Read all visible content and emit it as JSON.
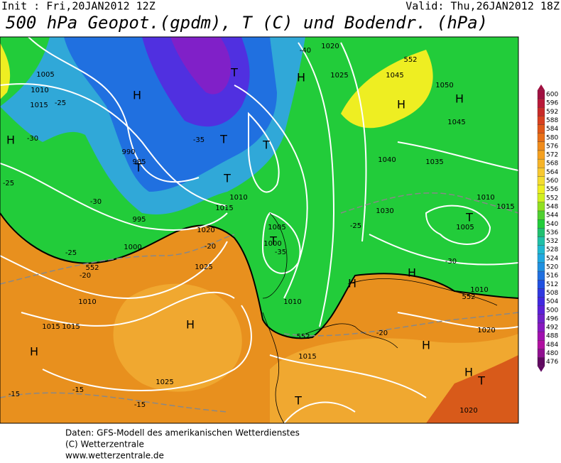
{
  "header": {
    "init": "Init : Fri,20JAN2012 12Z",
    "valid": "Valid: Thu,26JAN2012 18Z",
    "title": "500 hPa Geopot.(gpdm), T (C) und Bodendr. (hPa)"
  },
  "colorbar": {
    "labels": [
      "600",
      "596",
      "592",
      "588",
      "584",
      "580",
      "576",
      "572",
      "568",
      "564",
      "560",
      "556",
      "552",
      "548",
      "544",
      "540",
      "536",
      "532",
      "528",
      "524",
      "520",
      "516",
      "512",
      "508",
      "504",
      "500",
      "496",
      "492",
      "488",
      "484",
      "480",
      "476"
    ]
  },
  "map": {
    "labels": [
      "1005",
      "1010",
      "1015",
      "1020",
      "1025",
      "1000",
      "995",
      "990",
      "985",
      "1005",
      "1010",
      "1015",
      "1020",
      "1045",
      "1050",
      "1045",
      "1040",
      "1035",
      "1030",
      "1010",
      "1015",
      "1005",
      "1010",
      "1015",
      "1020",
      "1025",
      "1010",
      "1015",
      "1020",
      "1025",
      "1015",
      "1010",
      "1000",
      "-25",
      "-30",
      "-35",
      "-25",
      "-30",
      "-20",
      "-15",
      "-15",
      "-15",
      "-20",
      "-25",
      "-20",
      "-25",
      "-30",
      "-35",
      "-40",
      "552",
      "552",
      "552",
      "552"
    ],
    "pressure_centers": [
      "H",
      "H",
      "H",
      "H",
      "H",
      "H",
      "H",
      "H",
      "H",
      "H",
      "H",
      "T",
      "T",
      "T",
      "T",
      "T",
      "T",
      "T",
      "T",
      "T"
    ]
  },
  "footer": {
    "line1": "Daten: GFS-Modell des amerikanischen Wetterdienstes",
    "line2": "(C) Wetterzentrale",
    "line3": "www.wetterzentrale.de"
  }
}
